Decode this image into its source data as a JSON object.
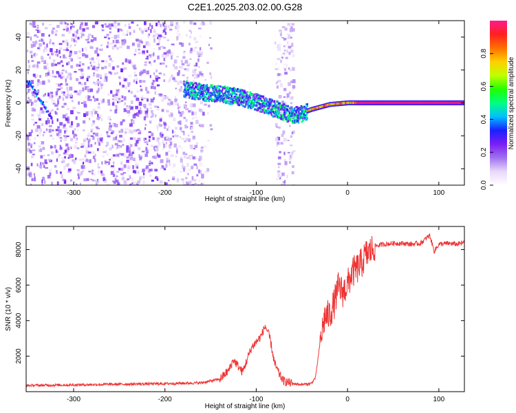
{
  "title": "C2E1.2025.203.02.00.G28",
  "chart_data": [
    {
      "type": "heatmap",
      "xlabel": "Height of straight line (km)",
      "ylabel": "Frequency (Hz)",
      "xlim": [
        -352,
        128
      ],
      "ylim": [
        -50,
        50
      ],
      "x_ticks": [
        -300,
        -200,
        -100,
        0,
        100
      ],
      "y_ticks": [
        -40,
        -20,
        0,
        20,
        40
      ],
      "colorbar": {
        "label": "Normalized spectral amplitude",
        "range": [
          0.0,
          1.0
        ],
        "ticks": [
          0.0,
          0.2,
          0.4,
          0.6,
          0.8
        ],
        "colors": [
          "#ffffff",
          "#e8d8f8",
          "#a070f0",
          "#7a1ef5",
          "#1a20ff",
          "#00c0ff",
          "#00ff80",
          "#20ff00",
          "#c0ff00",
          "#ffd000",
          "#ff7000",
          "#ff2020",
          "#ff1a8c"
        ]
      },
      "dominant_track": {
        "x": [
          -352,
          -320,
          -180,
          -160,
          -140,
          -120,
          -100,
          -80,
          -60,
          -50,
          -40,
          -20,
          0,
          128
        ],
        "y": [
          15,
          -12,
          9,
          7,
          6,
          4,
          1,
          -3,
          -7,
          -6,
          -4,
          -1,
          0,
          0
        ]
      }
    },
    {
      "type": "line",
      "xlabel": "Height of straight line (km)",
      "ylabel": "SNR (10 * v/v)",
      "xlim": [
        -352,
        128
      ],
      "ylim": [
        0,
        9300
      ],
      "x_ticks": [
        -300,
        -200,
        -100,
        0,
        100
      ],
      "y_ticks": [
        2000,
        4000,
        6000,
        8000
      ],
      "color": "#ee3333",
      "x": [
        -352,
        -300,
        -250,
        -200,
        -160,
        -140,
        -130,
        -125,
        -115,
        -105,
        -95,
        -90,
        -85,
        -80,
        -75,
        -70,
        -60,
        -50,
        -40,
        -35,
        -30,
        -25,
        -20,
        -15,
        -10,
        -5,
        0,
        5,
        10,
        15,
        20,
        25,
        30,
        40,
        50,
        60,
        70,
        80,
        90,
        95,
        100,
        110,
        120,
        128
      ],
      "y": [
        350,
        380,
        420,
        450,
        500,
        700,
        1200,
        1800,
        1100,
        2500,
        3100,
        3700,
        3000,
        1600,
        1000,
        600,
        450,
        400,
        450,
        800,
        2800,
        4200,
        4300,
        4900,
        5900,
        5600,
        6000,
        6700,
        6900,
        7200,
        7700,
        7900,
        8200,
        8300,
        8350,
        8350,
        8300,
        8350,
        8800,
        7900,
        8300,
        8350,
        8300,
        8400
      ]
    }
  ]
}
